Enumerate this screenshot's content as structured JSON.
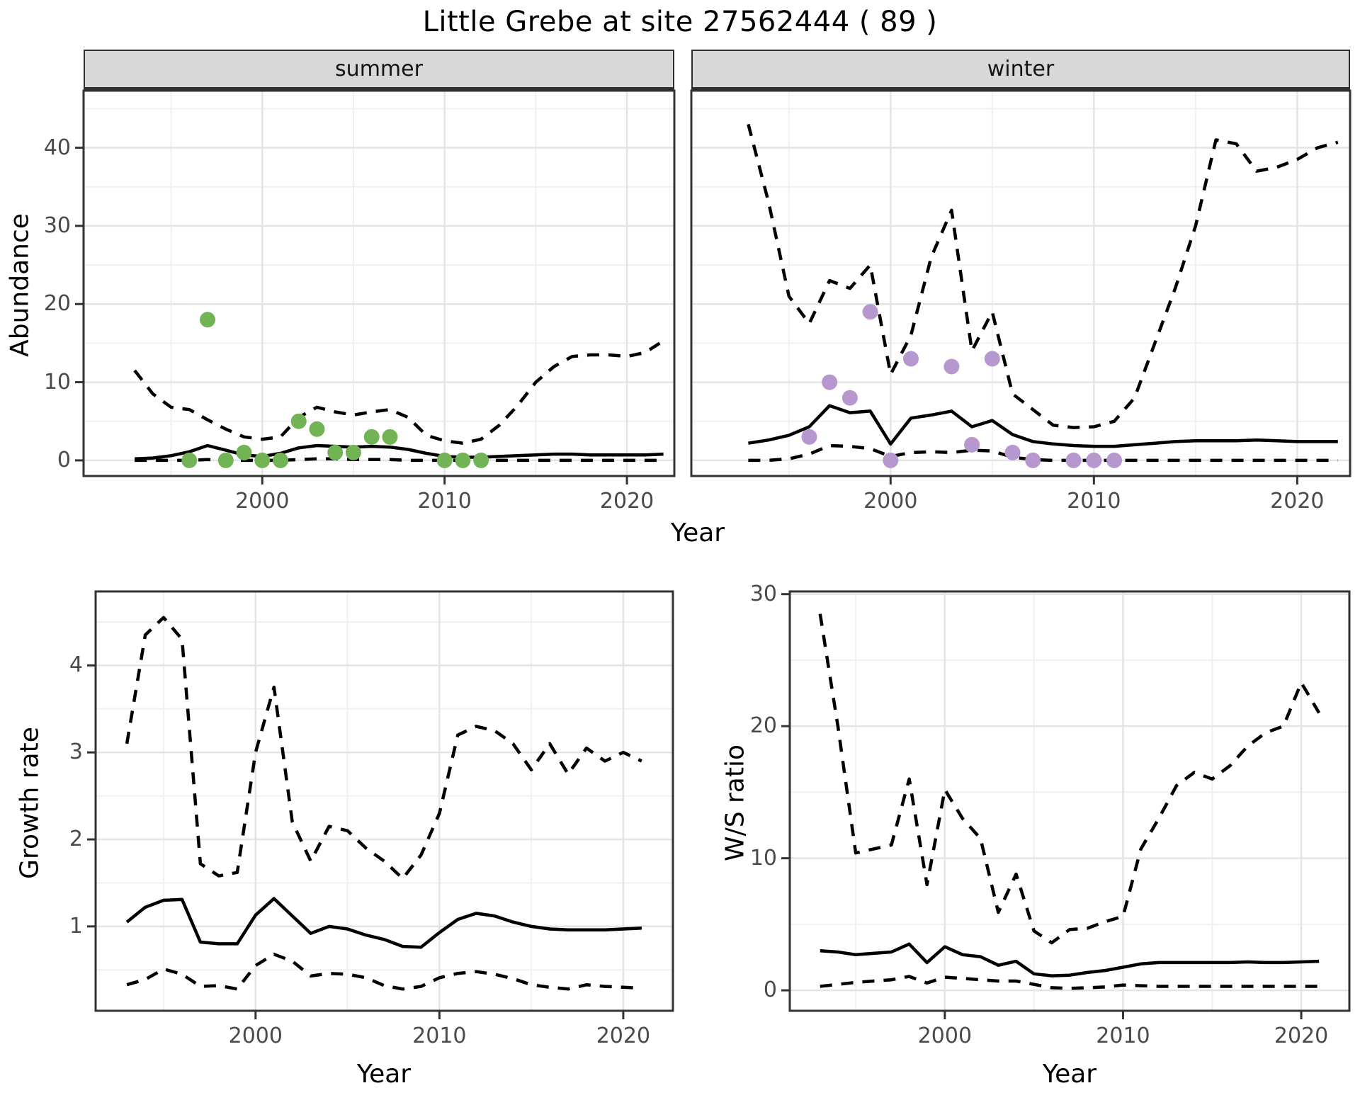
{
  "title": "Little Grebe at site 27562444 ( 89 )",
  "axes": {
    "x_title": "Year",
    "abundance_title": "Abundance",
    "growth_title": "Growth rate",
    "ws_title": "W/S ratio"
  },
  "facets": {
    "summer": "summer",
    "winter": "winter"
  },
  "colors": {
    "summer_point": "#72b356",
    "winter_point": "#b697ce",
    "line": "#000000",
    "strip_bg": "#d8d8d8",
    "grid_major": "#e4e4e4",
    "grid_minor": "#f0f0f0",
    "panel_border": "#333333",
    "axis_text": "#4a4a4a"
  },
  "chart_data": [
    {
      "id": "abundance-summer",
      "panel": "summer",
      "type": "line",
      "title": "",
      "xlabel": "Year",
      "ylabel": "Abundance",
      "xlim": [
        1990.2,
        2022.6
      ],
      "ylim": [
        -2,
        47.3
      ],
      "x_ticks": [
        2000,
        2010,
        2020
      ],
      "y_ticks": [
        0,
        10,
        20,
        30,
        40
      ],
      "grid": "on",
      "years": [
        1993,
        1994,
        1995,
        1996,
        1997,
        1998,
        1999,
        2000,
        2001,
        2002,
        2003,
        2004,
        2005,
        2006,
        2007,
        2008,
        2009,
        2010,
        2011,
        2012,
        2013,
        2014,
        2015,
        2016,
        2017,
        2018,
        2019,
        2020,
        2021,
        2022
      ],
      "series": [
        {
          "name": "upper_95ci",
          "style": "dashed",
          "values": [
            11.5,
            8.5,
            6.8,
            6.5,
            5.2,
            4,
            3,
            2.7,
            3,
            5.5,
            6.8,
            6.2,
            5.8,
            6.2,
            6.5,
            5.5,
            3.2,
            2.5,
            2.2,
            2.7,
            4.5,
            7,
            10,
            12,
            13.3,
            13.5,
            13.5,
            13.3,
            13.8,
            15.3
          ]
        },
        {
          "name": "median",
          "style": "solid",
          "values": [
            0.2,
            0.3,
            0.6,
            1.1,
            1.9,
            1.3,
            0.7,
            0.5,
            0.9,
            1.6,
            1.9,
            1.8,
            1.7,
            1.8,
            1.7,
            1.4,
            0.9,
            0.5,
            0.4,
            0.4,
            0.5,
            0.6,
            0.7,
            0.8,
            0.8,
            0.7,
            0.7,
            0.7,
            0.7,
            0.8
          ]
        },
        {
          "name": "lower_95ci",
          "style": "dashed",
          "values": [
            0,
            0,
            0,
            0,
            0.1,
            0,
            0,
            0,
            0,
            0.1,
            0.2,
            0.2,
            0.1,
            0.1,
            0.1,
            0,
            0,
            0,
            0,
            0,
            0,
            0,
            0,
            0,
            0,
            0,
            0,
            0,
            0,
            0
          ]
        }
      ],
      "observations": {
        "point_color": "#72b356",
        "years": [
          1996,
          1997,
          1998,
          1999,
          2000,
          2001,
          2002,
          2003,
          2004,
          2005,
          2006,
          2007,
          2010,
          2011,
          2012
        ],
        "values": [
          0,
          18,
          0,
          1,
          0,
          0,
          5,
          4,
          1,
          1,
          3,
          3,
          0,
          0,
          0
        ]
      }
    },
    {
      "id": "abundance-winter",
      "panel": "winter",
      "type": "line",
      "title": "",
      "xlabel": "Year",
      "ylabel": "Abundance",
      "xlim": [
        1990.2,
        2022.6
      ],
      "ylim": [
        -2,
        47.3
      ],
      "x_ticks": [
        2000,
        2010,
        2020
      ],
      "y_ticks": [
        0,
        10,
        20,
        30,
        40
      ],
      "grid": "on",
      "years": [
        1993,
        1994,
        1995,
        1996,
        1997,
        1998,
        1999,
        2000,
        2001,
        2002,
        2003,
        2004,
        2005,
        2006,
        2007,
        2008,
        2009,
        2010,
        2011,
        2012,
        2013,
        2014,
        2015,
        2016,
        2017,
        2018,
        2019,
        2020,
        2021,
        2022
      ],
      "series": [
        {
          "name": "upper_95ci",
          "style": "dashed",
          "values": [
            43,
            33,
            21,
            17.5,
            23,
            22,
            25,
            11,
            16,
            26,
            32,
            14,
            19,
            8.5,
            6.5,
            4.5,
            4.2,
            4.3,
            5,
            8,
            15,
            22,
            30,
            41,
            40.5,
            37,
            37.5,
            38.5,
            40,
            40.7
          ]
        },
        {
          "name": "median",
          "style": "solid",
          "values": [
            2.2,
            2.6,
            3.2,
            4.3,
            7,
            6.1,
            6.3,
            2.1,
            5.4,
            5.8,
            6.3,
            4.3,
            5.1,
            3.3,
            2.4,
            2.1,
            1.9,
            1.8,
            1.8,
            2,
            2.2,
            2.4,
            2.5,
            2.5,
            2.5,
            2.6,
            2.5,
            2.4,
            2.4,
            2.4
          ]
        },
        {
          "name": "lower_95ci",
          "style": "dashed",
          "values": [
            0,
            0,
            0.2,
            0.8,
            1.9,
            1.8,
            1.5,
            0.5,
            1,
            1.1,
            1,
            1.3,
            1.2,
            0.4,
            0.1,
            0,
            0,
            0,
            0,
            0,
            0,
            0,
            0,
            0,
            0,
            0,
            0,
            0,
            0,
            0
          ]
        }
      ],
      "observations": {
        "point_color": "#b697ce",
        "years": [
          1996,
          1997,
          1998,
          1999,
          2000,
          2001,
          2003,
          2004,
          2005,
          2006,
          2007,
          2009,
          2010,
          2011
        ],
        "values": [
          3,
          10,
          8,
          19,
          0,
          13,
          12,
          2,
          13,
          1,
          0,
          0,
          0,
          0
        ]
      }
    },
    {
      "id": "growth-rate",
      "panel": "growth",
      "type": "line",
      "title": "",
      "xlabel": "Year",
      "ylabel": "Growth rate",
      "xlim": [
        1991.3,
        2022.7
      ],
      "ylim": [
        0.03,
        4.85
      ],
      "x_ticks": [
        2000,
        2010,
        2020
      ],
      "y_ticks": [
        1,
        2,
        3,
        4
      ],
      "grid": "on",
      "years": [
        1993,
        1994,
        1995,
        1996,
        1997,
        1998,
        1999,
        2000,
        2001,
        2002,
        2003,
        2004,
        2005,
        2006,
        2007,
        2008,
        2009,
        2010,
        2011,
        2012,
        2013,
        2014,
        2015,
        2016,
        2017,
        2018,
        2019,
        2020,
        2021
      ],
      "series": [
        {
          "name": "upper_95ci",
          "style": "dashed",
          "values": [
            3.1,
            4.35,
            4.55,
            4.3,
            1.72,
            1.58,
            1.62,
            3.0,
            3.75,
            2.2,
            1.75,
            2.15,
            2.1,
            1.9,
            1.75,
            1.55,
            1.82,
            2.3,
            3.2,
            3.3,
            3.25,
            3.1,
            2.8,
            3.1,
            2.75,
            3.05,
            2.9,
            3.0,
            2.9
          ]
        },
        {
          "name": "median",
          "style": "solid",
          "values": [
            1.05,
            1.22,
            1.3,
            1.31,
            0.82,
            0.8,
            0.8,
            1.13,
            1.32,
            1.12,
            0.92,
            1.0,
            0.97,
            0.9,
            0.85,
            0.77,
            0.76,
            0.93,
            1.08,
            1.15,
            1.12,
            1.05,
            1.0,
            0.97,
            0.96,
            0.96,
            0.96,
            0.97,
            0.98
          ]
        },
        {
          "name": "lower_95ci",
          "style": "dashed",
          "values": [
            0.33,
            0.39,
            0.51,
            0.45,
            0.31,
            0.32,
            0.28,
            0.55,
            0.68,
            0.6,
            0.43,
            0.46,
            0.45,
            0.41,
            0.32,
            0.28,
            0.31,
            0.41,
            0.46,
            0.48,
            0.45,
            0.4,
            0.33,
            0.3,
            0.28,
            0.33,
            0.31,
            0.3,
            0.29
          ]
        }
      ]
    },
    {
      "id": "ws-ratio",
      "panel": "ws",
      "type": "line",
      "title": "",
      "xlabel": "Year",
      "ylabel": "W/S ratio",
      "xlim": [
        1991.3,
        2022.7
      ],
      "ylim": [
        -1.55,
        30.2
      ],
      "x_ticks": [
        2000,
        2010,
        2020
      ],
      "y_ticks": [
        0,
        10,
        20,
        30
      ],
      "grid": "on",
      "years": [
        1993,
        1994,
        1995,
        1996,
        1997,
        1998,
        1999,
        2000,
        2001,
        2002,
        2003,
        2004,
        2005,
        2006,
        2007,
        2008,
        2009,
        2010,
        2011,
        2012,
        2013,
        2014,
        2015,
        2016,
        2017,
        2018,
        2019,
        2020,
        2021
      ],
      "series": [
        {
          "name": "upper_95ci",
          "style": "dashed",
          "values": [
            28.5,
            20,
            10.4,
            10.7,
            11,
            16,
            8,
            15.2,
            13,
            11.5,
            5.9,
            8.8,
            4.5,
            3.6,
            4.6,
            4.7,
            5.2,
            5.6,
            10.7,
            13,
            15.5,
            16.5,
            16,
            17,
            18.5,
            19.5,
            20,
            23.3,
            21
          ]
        },
        {
          "name": "median",
          "style": "solid",
          "values": [
            3.0,
            2.9,
            2.7,
            2.8,
            2.9,
            3.5,
            2.1,
            3.3,
            2.7,
            2.55,
            1.9,
            2.2,
            1.25,
            1.1,
            1.15,
            1.35,
            1.5,
            1.75,
            2.0,
            2.1,
            2.1,
            2.1,
            2.1,
            2.1,
            2.15,
            2.1,
            2.1,
            2.15,
            2.2
          ]
        },
        {
          "name": "lower_95ci",
          "style": "dashed",
          "values": [
            0.3,
            0.45,
            0.6,
            0.7,
            0.8,
            1.05,
            0.55,
            1.0,
            0.9,
            0.8,
            0.7,
            0.7,
            0.45,
            0.2,
            0.15,
            0.2,
            0.25,
            0.4,
            0.35,
            0.3,
            0.3,
            0.3,
            0.3,
            0.3,
            0.3,
            0.3,
            0.3,
            0.3,
            0.3
          ]
        }
      ]
    }
  ]
}
